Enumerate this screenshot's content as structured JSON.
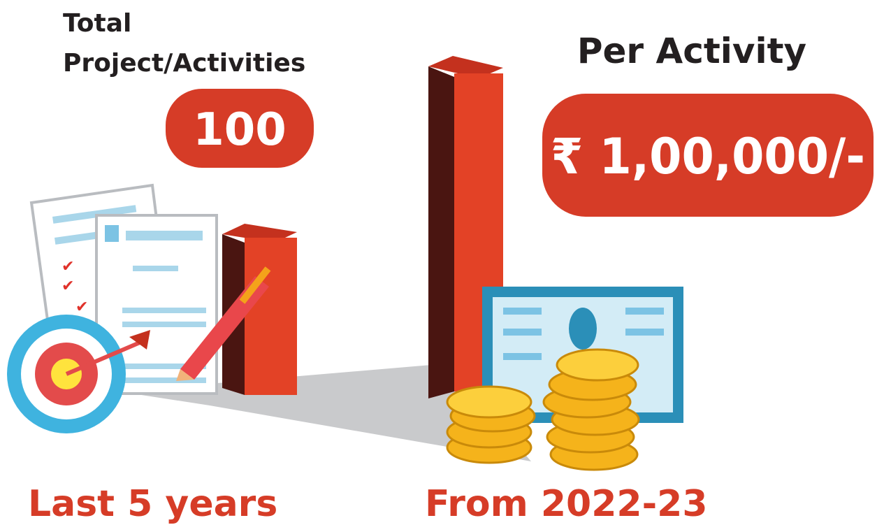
{
  "left": {
    "title_lines": [
      "Total",
      "Project/Activities"
    ],
    "value": "100",
    "caption": "Last 5 years"
  },
  "right": {
    "title": "Per Activity",
    "value": "₹ 1,00,000/-",
    "caption": "From 2022-23"
  }
}
